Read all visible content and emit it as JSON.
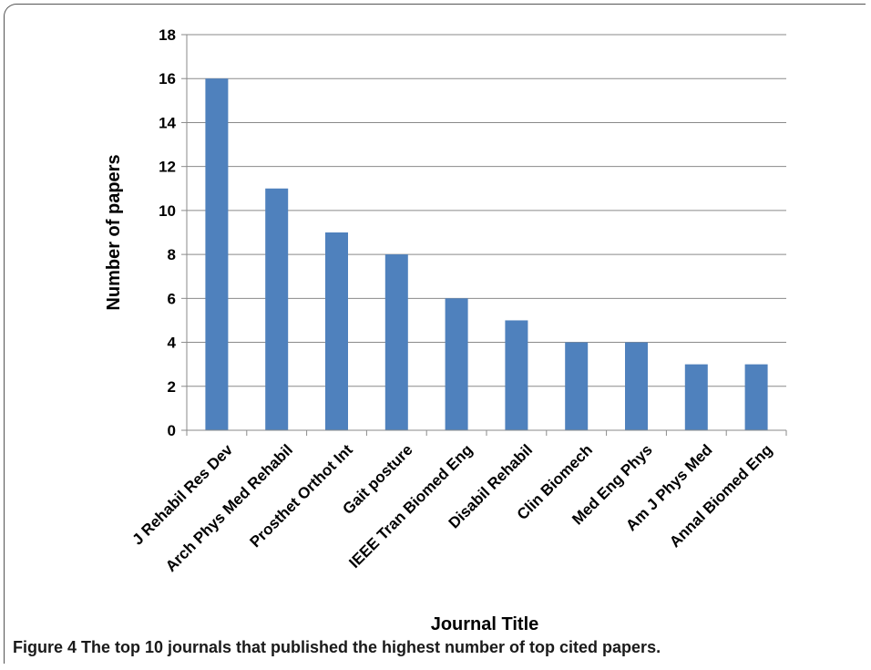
{
  "chart_data": {
    "type": "bar",
    "title": "",
    "xlabel": "Journal Title",
    "ylabel": "Number of papers",
    "ylim": [
      0,
      18
    ],
    "yticks": [
      0,
      2,
      4,
      6,
      8,
      10,
      12,
      14,
      16,
      18
    ],
    "grid": true,
    "legend": "none",
    "bar_color": "#4F81BD",
    "categories": [
      "J Rehabil Res Dev",
      "Arch Phys Med Rehabil",
      "Prosthet Orthot Int",
      "Gait posture",
      "IEEE Tran Biomed Eng",
      "Disabil Rehabil",
      "Clin Biomech",
      "Med Eng Phys",
      "Am J Phys Med",
      "Annal Biomed Eng"
    ],
    "values": [
      16,
      11,
      9,
      8,
      6,
      5,
      4,
      4,
      3,
      3
    ]
  },
  "caption": {
    "label": "Figure 4",
    "text": "The top 10 journals that published the highest number of top cited papers."
  }
}
